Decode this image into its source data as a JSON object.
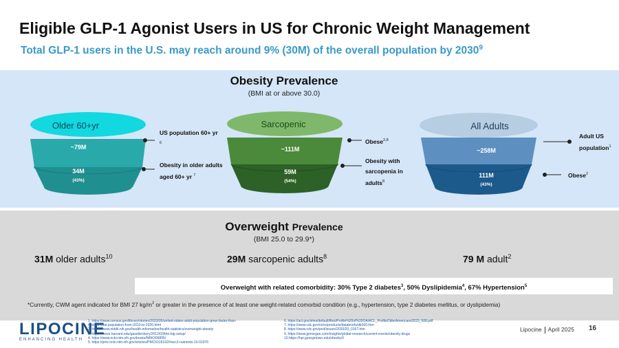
{
  "title": "Eligible GLP-1 Agonist Users in US for Chronic Weight Management",
  "subtitle": "Total GLP-1 users in the U.S. may reach around 9% (30M) of the overall population by 2030",
  "subtitle_ref": "9",
  "obesity": {
    "heading": "Obesity Prevalence",
    "subheading": "(BMI at or above 30.0)",
    "groups": [
      {
        "top_label": "Older 60+yr",
        "mid_value": "~79M",
        "bottom_value": "34M",
        "bottom_pct": "(43%)",
        "ann1": "US population 60+ yr",
        "ann1_ref": "6",
        "ann2": "Obesity in older adults aged 60+ yr",
        "ann2_ref": "7"
      },
      {
        "top_label": "Sarcopenic",
        "mid_value": "~111M",
        "bottom_value": "59M",
        "bottom_pct": "(54%)",
        "ann1": "Obese",
        "ann1_ref": "2,8",
        "ann2": "Obesity with sarcopenia in adults",
        "ann2_ref": "8"
      },
      {
        "top_label": "All Adults",
        "mid_value": "~258M",
        "bottom_value": "111M",
        "bottom_pct": "(43%)",
        "ann1": "Adult US population",
        "ann1_ref": "1",
        "ann2": "Obese",
        "ann2_ref": "2"
      }
    ]
  },
  "overweight": {
    "heading_bold": "Overweight",
    "heading_rest": "Prevalence",
    "subheading": "(BMI 25.0 to 29.9*)",
    "items": [
      {
        "value": "31M",
        "label": "older adults",
        "ref": "10"
      },
      {
        "value": "29M",
        "label": "sarcopenic adults",
        "ref": "8"
      },
      {
        "value": "79 M",
        "label": "adult",
        "ref": "2"
      }
    ],
    "comorbidity": {
      "prefix": "Overweight with related comorbidity: 30% Type 2 diabetes",
      "ref1": "3",
      "mid": ", 50% Dyslipidemia",
      "ref2": "4",
      "mid2": ", 67% Hypertension",
      "ref3": "5"
    }
  },
  "footnote": {
    "pre": "*Currently, CWM agent indicated for BMI 27 kg/m",
    "sup": "2",
    "post": " or greater in the presence of at least one weight-related comorbid condition (e.g., hypertension, type 2 diabetes mellitus, or dyslipidemia)"
  },
  "references_left": [
    "1. https://www.census.gov/library/stories/2023/05/united-states-adult-population-grew-faster-than-",
    "    nations-total-population-from-2010-to-2020.html",
    "2. https://www.niddk.nih.gov/health-information/health-statistics/overweight-obesity",
    "3. https://news.harvard.edu/gazette/story/2012/03/the-big-setup/",
    "4. https://www.ncbi.nlm.nih.gov/books/NBK305895/",
    "5. https://pmc.ncbi.nlm.nih.gov/articles/PMC6316192/#sec3-nutrients-10-01976"
  ],
  "references_right": [
    "6. https://acl.gov/sites/default/files/Profile%20of%20OA/ACL_ProfileOlderAmericans2023_508.pdf",
    "7. https://www.cdc.gov/nchs/products/databriefs/db360.htm",
    "8. https://www.cdc.gov/pcd/issues/2020/20_0167.htm",
    "9. https://www.jpmorgan.com/insights/global-research/current-events/obesity-drugs",
    "10.https://hpi.georgetown.edu/obesity2/"
  ],
  "brand": {
    "name": "LIPOCINE",
    "tagline": "ENHANCING HEALTH"
  },
  "footer": {
    "company": "Lipocine",
    "date": "April 2025",
    "page": "16"
  },
  "colors": {
    "accent": "#3a9ac8",
    "funnel1_top": "#12d8e0",
    "funnel1_mid": "#2aa9aa",
    "funnel1_bot": "#1f8f8f",
    "funnel2_top": "#7fb86a",
    "funnel2_mid": "#4a8a3a",
    "funnel2_bot": "#2d6127",
    "funnel3_top": "#b7cde2",
    "funnel3_mid": "#5d8fc0",
    "funnel3_bot": "#1c5a8c"
  },
  "icons": [
    "connector-dot"
  ]
}
